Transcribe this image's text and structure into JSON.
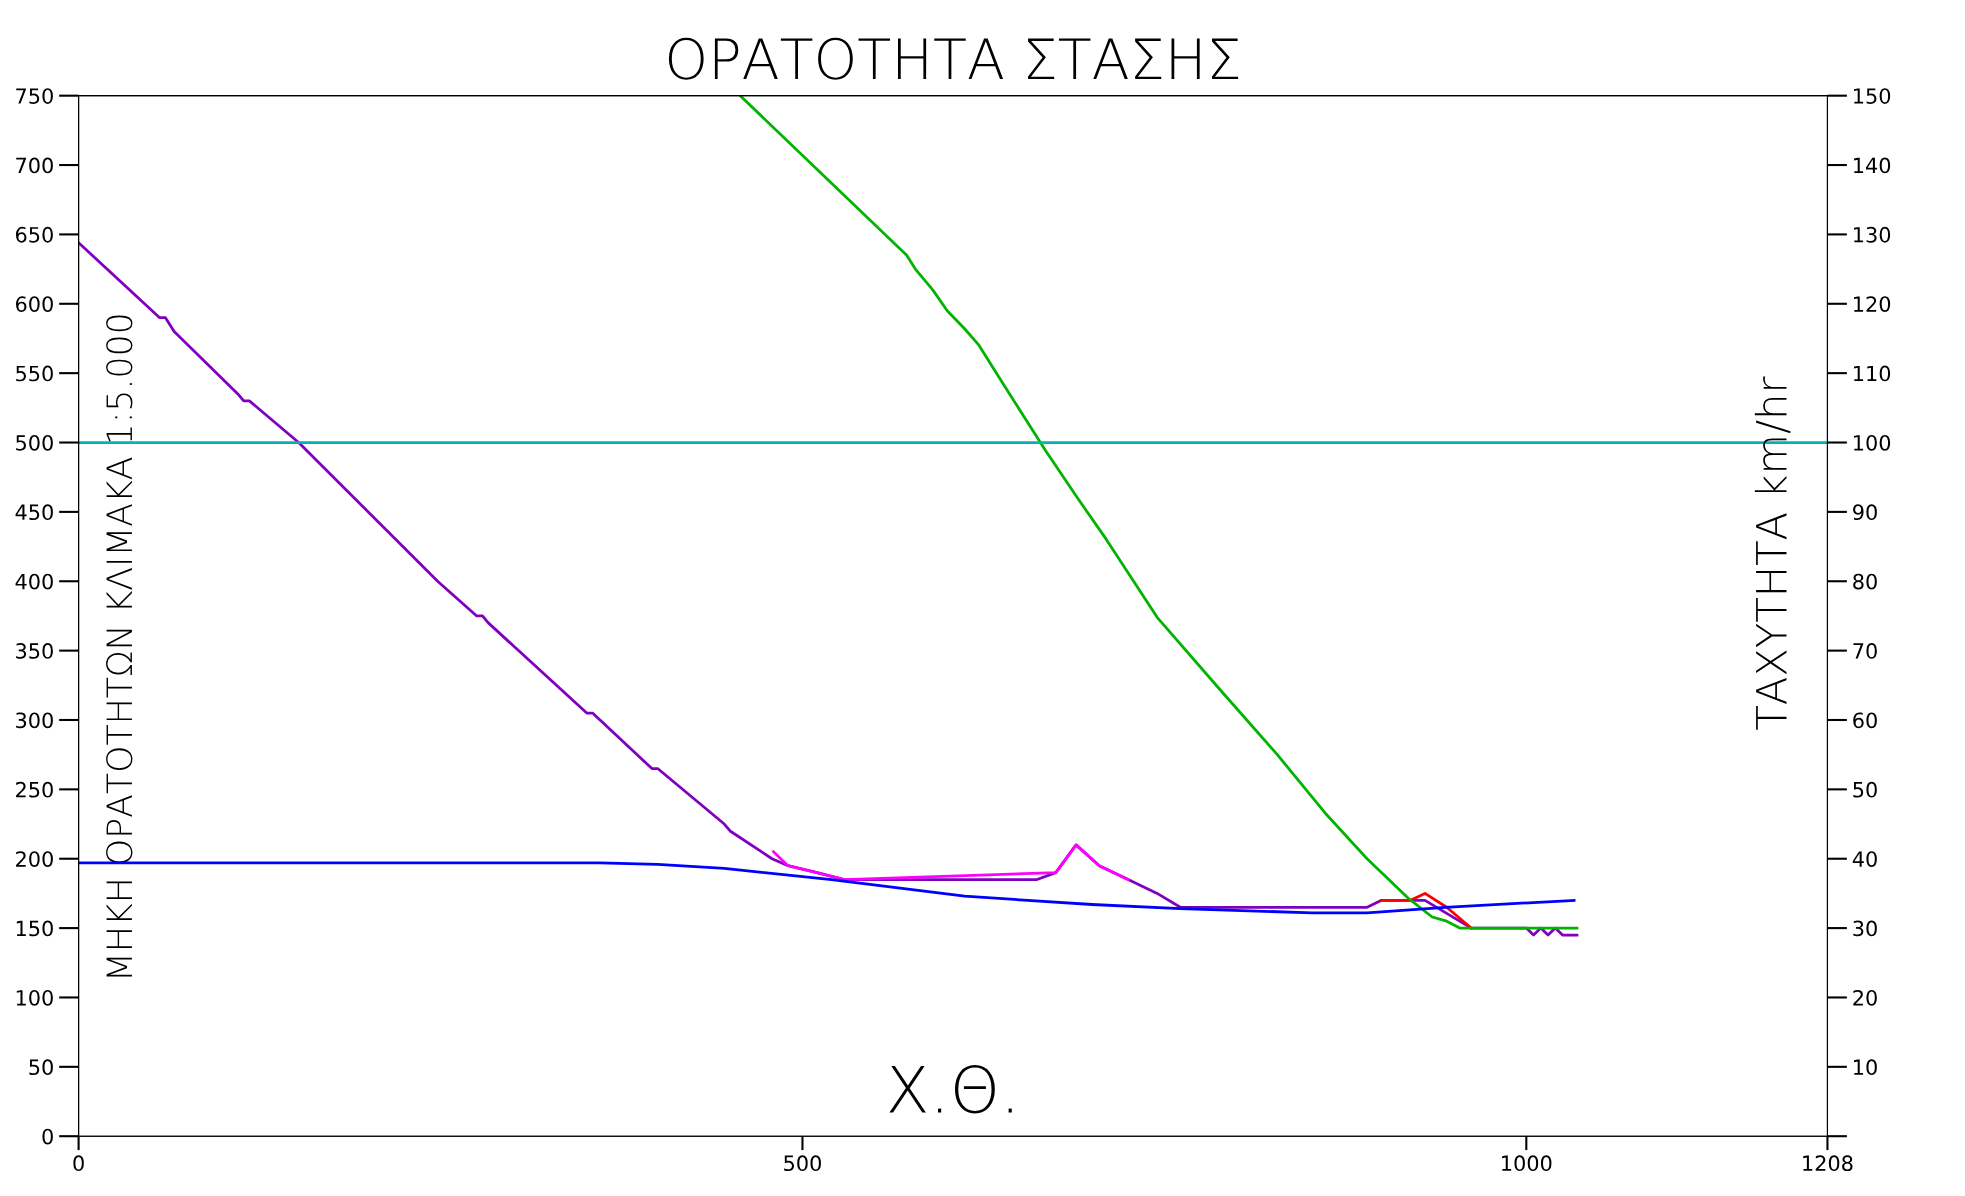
{
  "chart_data": {
    "type": "line",
    "title": "ΟΡΑΤΟΤΗΤΑ ΣΤΑΣΗΣ",
    "xlabel": "Χ.Θ.",
    "ylabel": "ΜΗΚΗ ΟΡΑΤΟΤΗΤΩΝ ΚΛΙΜΑΚΑ 1:5.000",
    "y2label": "ΤΑΧΥΤΗΤΑ km/hr",
    "xlim": [
      0,
      1208
    ],
    "xticks": [
      0,
      500,
      1000,
      1208
    ],
    "ylim": [
      0,
      750
    ],
    "yticks": [
      0,
      50,
      100,
      150,
      200,
      250,
      300,
      350,
      400,
      450,
      500,
      550,
      600,
      650,
      700,
      750
    ],
    "y2lim": [
      0,
      150
    ],
    "y2ticks": [
      {
        "value": 0,
        "label": null
      },
      10,
      20,
      30,
      40,
      50,
      60,
      70,
      80,
      90,
      100,
      110,
      120,
      130,
      140,
      150
    ],
    "grid": false,
    "legend": false,
    "marker": "none",
    "line_style": "solid",
    "ref_lines": [
      {
        "axis": "y",
        "value": 500,
        "label": null,
        "color": "#00b4b4"
      }
    ],
    "series": [
      {
        "color": "#8000c0",
        "x": [
          0,
          56,
          60,
          66,
          110,
          114,
          118,
          152,
          248,
          275,
          279,
          283,
          351,
          355,
          396,
          400,
          446,
          450,
          479,
          490,
          510,
          529,
          662,
          675,
          689,
          705,
          725,
          745,
          761,
          890,
          900,
          930,
          962,
          1000,
          1005,
          1010,
          1015,
          1020,
          1025,
          1035
        ],
        "values": [
          644,
          590,
          590,
          580,
          535,
          530,
          530,
          500,
          400,
          375,
          375,
          370,
          305,
          305,
          265,
          265,
          225,
          220,
          200,
          195,
          190,
          185,
          185,
          190,
          210,
          195,
          185,
          175,
          165,
          165,
          170,
          170,
          150,
          150,
          145,
          150,
          145,
          150,
          145,
          145
        ]
      },
      {
        "color": "#ff00ff",
        "x": [
          480,
          490,
          510,
          529,
          675,
          689,
          705,
          725
        ],
        "values": [
          205,
          195,
          190,
          185,
          190,
          210,
          195,
          185
        ]
      },
      {
        "color": "#ff0000",
        "x": [
          900,
          920,
          930,
          945,
          962
        ],
        "values": [
          170,
          170,
          175,
          165,
          150
        ]
      },
      {
        "color": "#00b400",
        "x": [
          457,
          572,
          578,
          590,
          600,
          612,
          622,
          640,
          668,
          690,
          710,
          745,
          790,
          828,
          861,
          890,
          919,
          935,
          945,
          954,
          1035
        ],
        "values": [
          750,
          635,
          625,
          610,
          595,
          582,
          570,
          540,
          494,
          460,
          430,
          374,
          320,
          275,
          233,
          200,
          171,
          158,
          155,
          150,
          150
        ]
      },
      {
        "color": "#0000ff",
        "x": [
          0,
          360,
          400,
          446,
          520,
          612,
          700,
          761,
          852,
          890,
          944,
          1033
        ],
        "values": [
          197,
          197,
          196,
          193,
          185,
          173,
          167,
          164,
          161,
          161,
          165,
          170
        ]
      }
    ]
  }
}
